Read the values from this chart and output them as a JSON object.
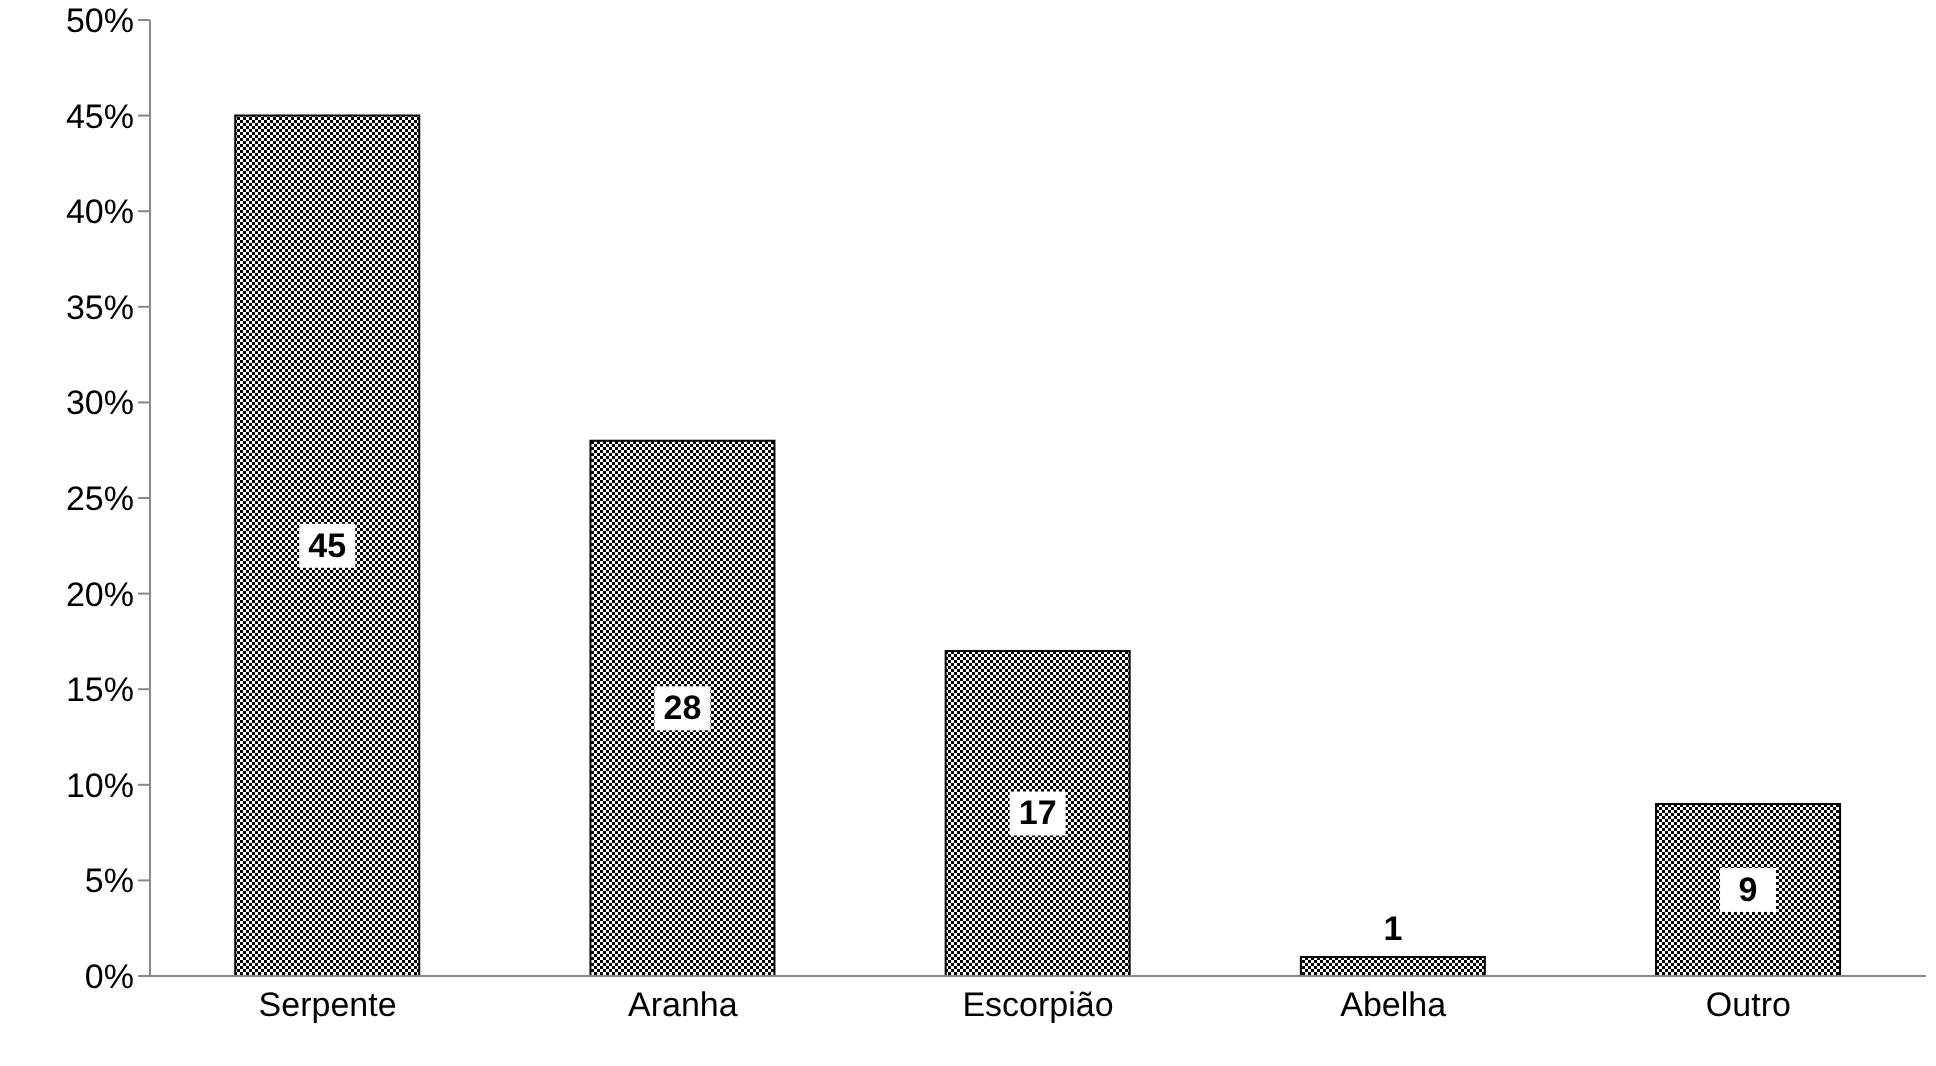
{
  "chart_data": {
    "type": "bar",
    "categories": [
      "Serpente",
      "Aranha",
      "Escorpião",
      "Abelha",
      "Outro"
    ],
    "values": [
      45,
      28,
      17,
      1,
      9
    ],
    "color": "#000000",
    "ylim": [
      0,
      50
    ],
    "yticks": [
      {
        "value": 0,
        "label": "0%"
      },
      {
        "value": 5,
        "label": "5%"
      },
      {
        "value": 10,
        "label": "10%"
      },
      {
        "value": 15,
        "label": "15%"
      },
      {
        "value": 20,
        "label": "20%"
      },
      {
        "value": 25,
        "label": "25%"
      },
      {
        "value": 30,
        "label": "30%"
      },
      {
        "value": 35,
        "label": "35%"
      },
      {
        "value": 40,
        "label": "40%"
      },
      {
        "value": 45,
        "label": "45%"
      },
      {
        "value": 50,
        "label": "50%"
      }
    ],
    "grid": false,
    "legend": false,
    "data_labels": true
  }
}
